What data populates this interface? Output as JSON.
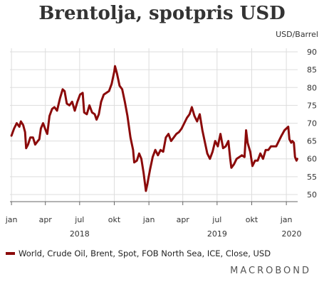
{
  "chart_data": {
    "type": "line",
    "title": "Brentolja, spotpris USD",
    "unit_label": "USD/Barrel",
    "ylim": [
      48,
      91
    ],
    "y_ticks": [
      50,
      55,
      60,
      65,
      70,
      75,
      80,
      85,
      90
    ],
    "x_range": [
      "2017-12-28",
      "2020-01-31"
    ],
    "x_ticks": [
      {
        "date": "2018-01-01",
        "label": "jan"
      },
      {
        "date": "2018-04-01",
        "label": "apr"
      },
      {
        "date": "2018-07-01",
        "label": "jul"
      },
      {
        "date": "2018-10-01",
        "label": "okt"
      },
      {
        "date": "2019-01-01",
        "label": "jan"
      },
      {
        "date": "2019-04-01",
        "label": "apr"
      },
      {
        "date": "2019-07-01",
        "label": "jul"
      },
      {
        "date": "2019-10-01",
        "label": "okt"
      },
      {
        "date": "2020-01-01",
        "label": "jan"
      }
    ],
    "year_labels": [
      {
        "date": "2018-07-01",
        "label": "2018"
      },
      {
        "date": "2019-07-01",
        "label": "2019"
      },
      {
        "date": "2020-01-15",
        "label": "2020"
      }
    ],
    "grid": true,
    "legend_position": "bottom-left",
    "series": [
      {
        "name": "World, Crude Oil, Brent, Spot, FOB North Sea, ICE, Close, USD",
        "color": "#8b0a0a",
        "points": [
          [
            "2018-01-01",
            66.5
          ],
          [
            "2018-01-08",
            68.5
          ],
          [
            "2018-01-15",
            70.0
          ],
          [
            "2018-01-22",
            69.0
          ],
          [
            "2018-01-26",
            70.5
          ],
          [
            "2018-02-01",
            69.5
          ],
          [
            "2018-02-06",
            67.5
          ],
          [
            "2018-02-09",
            63.0
          ],
          [
            "2018-02-14",
            64.0
          ],
          [
            "2018-02-20",
            66.0
          ],
          [
            "2018-02-27",
            66.0
          ],
          [
            "2018-03-05",
            64.0
          ],
          [
            "2018-03-12",
            65.0
          ],
          [
            "2018-03-16",
            65.5
          ],
          [
            "2018-03-20",
            68.5
          ],
          [
            "2018-03-26",
            70.0
          ],
          [
            "2018-04-02",
            68.0
          ],
          [
            "2018-04-06",
            67.0
          ],
          [
            "2018-04-12",
            72.0
          ],
          [
            "2018-04-19",
            74.0
          ],
          [
            "2018-04-25",
            74.5
          ],
          [
            "2018-05-02",
            73.5
          ],
          [
            "2018-05-10",
            77.0
          ],
          [
            "2018-05-17",
            79.5
          ],
          [
            "2018-05-22",
            79.0
          ],
          [
            "2018-05-28",
            75.5
          ],
          [
            "2018-06-04",
            75.0
          ],
          [
            "2018-06-11",
            76.0
          ],
          [
            "2018-06-18",
            73.5
          ],
          [
            "2018-06-25",
            76.0
          ],
          [
            "2018-07-02",
            78.0
          ],
          [
            "2018-07-09",
            78.5
          ],
          [
            "2018-07-13",
            73.0
          ],
          [
            "2018-07-20",
            72.5
          ],
          [
            "2018-07-27",
            75.0
          ],
          [
            "2018-08-03",
            73.0
          ],
          [
            "2018-08-10",
            72.5
          ],
          [
            "2018-08-15",
            71.0
          ],
          [
            "2018-08-21",
            72.5
          ],
          [
            "2018-08-27",
            76.0
          ],
          [
            "2018-09-03",
            78.0
          ],
          [
            "2018-09-10",
            78.5
          ],
          [
            "2018-09-17",
            79.0
          ],
          [
            "2018-09-24",
            81.0
          ],
          [
            "2018-10-01",
            84.5
          ],
          [
            "2018-10-03",
            86.0
          ],
          [
            "2018-10-08",
            84.0
          ],
          [
            "2018-10-15",
            80.5
          ],
          [
            "2018-10-22",
            79.5
          ],
          [
            "2018-10-29",
            76.0
          ],
          [
            "2018-11-05",
            72.0
          ],
          [
            "2018-11-13",
            66.0
          ],
          [
            "2018-11-20",
            62.5
          ],
          [
            "2018-11-23",
            59.0
          ],
          [
            "2018-11-30",
            59.5
          ],
          [
            "2018-12-06",
            61.5
          ],
          [
            "2018-12-12",
            60.0
          ],
          [
            "2018-12-18",
            56.0
          ],
          [
            "2018-12-24",
            51.0
          ],
          [
            "2018-12-28",
            53.0
          ],
          [
            "2019-01-04",
            57.0
          ],
          [
            "2019-01-11",
            60.5
          ],
          [
            "2019-01-18",
            62.5
          ],
          [
            "2019-01-25",
            61.0
          ],
          [
            "2019-02-01",
            62.5
          ],
          [
            "2019-02-08",
            62.0
          ],
          [
            "2019-02-15",
            66.0
          ],
          [
            "2019-02-22",
            67.0
          ],
          [
            "2019-03-01",
            65.0
          ],
          [
            "2019-03-08",
            66.0
          ],
          [
            "2019-03-15",
            67.0
          ],
          [
            "2019-03-22",
            67.5
          ],
          [
            "2019-03-29",
            68.5
          ],
          [
            "2019-04-05",
            70.0
          ],
          [
            "2019-04-12",
            71.5
          ],
          [
            "2019-04-19",
            72.5
          ],
          [
            "2019-04-25",
            74.5
          ],
          [
            "2019-05-02",
            72.0
          ],
          [
            "2019-05-09",
            70.5
          ],
          [
            "2019-05-16",
            72.5
          ],
          [
            "2019-05-23",
            68.0
          ],
          [
            "2019-05-30",
            64.5
          ],
          [
            "2019-06-05",
            61.5
          ],
          [
            "2019-06-12",
            60.0
          ],
          [
            "2019-06-19",
            62.0
          ],
          [
            "2019-06-26",
            65.0
          ],
          [
            "2019-07-03",
            63.5
          ],
          [
            "2019-07-10",
            67.0
          ],
          [
            "2019-07-17",
            63.0
          ],
          [
            "2019-07-24",
            63.5
          ],
          [
            "2019-07-31",
            65.0
          ],
          [
            "2019-08-05",
            60.0
          ],
          [
            "2019-08-08",
            57.5
          ],
          [
            "2019-08-15",
            58.5
          ],
          [
            "2019-08-22",
            60.0
          ],
          [
            "2019-08-29",
            60.5
          ],
          [
            "2019-09-05",
            61.0
          ],
          [
            "2019-09-12",
            60.5
          ],
          [
            "2019-09-16",
            68.0
          ],
          [
            "2019-09-20",
            64.5
          ],
          [
            "2019-09-27",
            62.0
          ],
          [
            "2019-10-03",
            58.0
          ],
          [
            "2019-10-10",
            59.5
          ],
          [
            "2019-10-17",
            59.5
          ],
          [
            "2019-10-24",
            61.5
          ],
          [
            "2019-10-31",
            60.0
          ],
          [
            "2019-11-07",
            62.5
          ],
          [
            "2019-11-14",
            62.5
          ],
          [
            "2019-11-21",
            63.5
          ],
          [
            "2019-11-28",
            63.5
          ],
          [
            "2019-12-05",
            63.5
          ],
          [
            "2019-12-12",
            65.0
          ],
          [
            "2019-12-19",
            66.5
          ],
          [
            "2019-12-27",
            68.0
          ],
          [
            "2020-01-06",
            69.0
          ],
          [
            "2020-01-09",
            65.5
          ],
          [
            "2020-01-14",
            64.5
          ],
          [
            "2020-01-17",
            65.0
          ],
          [
            "2020-01-21",
            64.5
          ],
          [
            "2020-01-24",
            60.5
          ],
          [
            "2020-01-28",
            59.5
          ],
          [
            "2020-01-30",
            60.0
          ]
        ]
      }
    ]
  },
  "brand": "MACROBOND"
}
